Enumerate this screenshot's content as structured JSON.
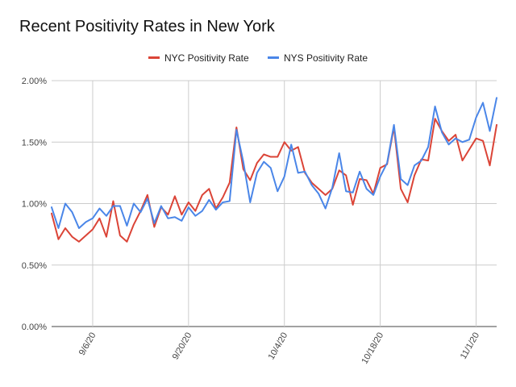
{
  "chart_data": {
    "type": "line",
    "title": "Recent Positivity Rates in New York",
    "xlabel": "",
    "ylabel": "",
    "ylim": [
      0,
      0.02
    ],
    "y_ticks": [
      0,
      0.005,
      0.01,
      0.015,
      0.02
    ],
    "y_tick_labels": [
      "0.00%",
      "0.50%",
      "1.00%",
      "1.50%",
      "2.00%"
    ],
    "x_tick_labels": [
      "9/6/20",
      "9/20/20",
      "10/4/20",
      "10/18/20",
      "11/1/20"
    ],
    "x_tick_index": [
      6,
      20,
      34,
      48,
      62
    ],
    "series": [
      {
        "name": "NYC Positivity Rate",
        "color": "#db4437",
        "values": [
          0.0092,
          0.0071,
          0.008,
          0.0073,
          0.0069,
          0.0074,
          0.0079,
          0.0088,
          0.0073,
          0.0102,
          0.0074,
          0.0069,
          0.0083,
          0.0094,
          0.0107,
          0.0081,
          0.0097,
          0.0091,
          0.0106,
          0.0091,
          0.0101,
          0.0094,
          0.0107,
          0.0112,
          0.0096,
          0.0105,
          0.0117,
          0.0162,
          0.0128,
          0.0119,
          0.0133,
          0.014,
          0.0138,
          0.0138,
          0.015,
          0.0143,
          0.0146,
          0.0125,
          0.0117,
          0.0112,
          0.0107,
          0.0112,
          0.0127,
          0.0123,
          0.0099,
          0.012,
          0.0119,
          0.0108,
          0.0129,
          0.0132,
          0.0162,
          0.0112,
          0.0101,
          0.0123,
          0.0136,
          0.0135,
          0.0169,
          0.0159,
          0.0151,
          0.0156,
          0.0135,
          0.0144,
          0.0153,
          0.0151,
          0.0131,
          0.0164
        ]
      },
      {
        "name": "NYS Positivity Rate",
        "color": "#4a86e8",
        "values": [
          0.0097,
          0.008,
          0.01,
          0.0093,
          0.008,
          0.0085,
          0.0088,
          0.0096,
          0.009,
          0.0098,
          0.0098,
          0.0082,
          0.01,
          0.0093,
          0.0104,
          0.0084,
          0.0098,
          0.0088,
          0.0089,
          0.0086,
          0.0097,
          0.009,
          0.0094,
          0.0103,
          0.0095,
          0.0101,
          0.0102,
          0.016,
          0.0134,
          0.0101,
          0.0125,
          0.0134,
          0.0129,
          0.011,
          0.0122,
          0.0148,
          0.0125,
          0.0126,
          0.0115,
          0.0108,
          0.0096,
          0.0113,
          0.0141,
          0.011,
          0.0109,
          0.0126,
          0.0112,
          0.0107,
          0.0122,
          0.0133,
          0.0164,
          0.012,
          0.0115,
          0.0131,
          0.0135,
          0.0146,
          0.0179,
          0.0158,
          0.0148,
          0.0153,
          0.015,
          0.0152,
          0.017,
          0.0182,
          0.0159,
          0.0186
        ]
      }
    ],
    "legend_position": "top-center"
  }
}
